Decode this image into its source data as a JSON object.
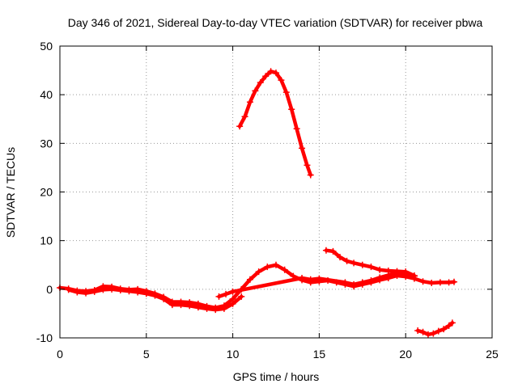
{
  "chart_data": {
    "type": "scatter",
    "title": "Day 346 of 2021, Sidereal Day-to-day VTEC variation (SDTVAR) for receiver pbwa",
    "xlabel": "GPS time / hours",
    "ylabel": "SDTVAR / TECUs",
    "xlim": [
      0,
      25
    ],
    "ylim": [
      -10,
      50
    ],
    "xticks": [
      0,
      5,
      10,
      15,
      20,
      25
    ],
    "yticks": [
      -10,
      0,
      10,
      20,
      30,
      40,
      50
    ],
    "grid": true,
    "marker_color": "#ff0000",
    "series": [
      {
        "name": "main-track",
        "points": [
          [
            0,
            0.3
          ],
          [
            0.5,
            0.1
          ],
          [
            1,
            -0.3
          ],
          [
            1.5,
            -0.4
          ],
          [
            2,
            -0.2
          ],
          [
            2.5,
            0.6
          ],
          [
            3,
            0.5
          ],
          [
            3.5,
            0.1
          ],
          [
            4,
            -0.1
          ],
          [
            4.5,
            0.0
          ],
          [
            5,
            -0.4
          ],
          [
            5.5,
            -0.9
          ],
          [
            6,
            -1.6
          ],
          [
            6.5,
            -2.6
          ],
          [
            7,
            -2.6
          ],
          [
            7.5,
            -2.7
          ],
          [
            8,
            -3.0
          ],
          [
            8.5,
            -3.5
          ],
          [
            9,
            -3.8
          ],
          [
            9.5,
            -3.4
          ],
          [
            10,
            -2.0
          ],
          [
            10.5,
            0.0
          ],
          [
            11,
            2.0
          ],
          [
            11.5,
            3.6
          ],
          [
            12,
            4.6
          ],
          [
            12.5,
            5.0
          ],
          [
            13,
            4.0
          ],
          [
            13.5,
            2.7
          ],
          [
            14,
            1.9
          ],
          [
            14.5,
            1.4
          ],
          [
            15,
            1.6
          ],
          [
            15.5,
            1.8
          ],
          [
            16,
            1.4
          ],
          [
            16.5,
            1.0
          ],
          [
            17,
            0.6
          ],
          [
            17.5,
            1.0
          ],
          [
            18,
            1.4
          ],
          [
            18.5,
            1.9
          ],
          [
            19,
            2.3
          ],
          [
            19.5,
            2.8
          ],
          [
            20,
            2.6
          ],
          [
            20.5,
            2.2
          ],
          [
            21,
            1.6
          ],
          [
            21.5,
            1.3
          ],
          [
            22,
            1.4
          ],
          [
            22.5,
            1.4
          ],
          [
            22.8,
            1.5
          ]
        ]
      },
      {
        "name": "lower-band",
        "points": [
          [
            0.5,
            -0.1
          ],
          [
            1,
            -0.6
          ],
          [
            1.5,
            -0.8
          ],
          [
            2,
            -0.5
          ],
          [
            2.5,
            -0.1
          ],
          [
            3,
            0.0
          ],
          [
            3.5,
            -0.2
          ],
          [
            4,
            -0.4
          ],
          [
            4.5,
            -0.6
          ],
          [
            5,
            -0.9
          ],
          [
            5.5,
            -1.3
          ],
          [
            6,
            -2.0
          ],
          [
            6.5,
            -3.2
          ],
          [
            7,
            -3.2
          ],
          [
            7.5,
            -3.4
          ],
          [
            8,
            -3.7
          ],
          [
            8.5,
            -4.0
          ],
          [
            9,
            -4.2
          ],
          [
            9.5,
            -4.0
          ],
          [
            10,
            -3.0
          ],
          [
            10.5,
            -1.5
          ]
        ]
      },
      {
        "name": "upper-band",
        "points": [
          [
            9.2,
            -1.5
          ],
          [
            9.6,
            -1.0
          ],
          [
            10,
            -0.5
          ],
          [
            14,
            2.3
          ],
          [
            14.5,
            2.0
          ],
          [
            15,
            2.2
          ],
          [
            16.5,
            1.4
          ],
          [
            17,
            1.0
          ],
          [
            17.5,
            1.4
          ],
          [
            18,
            1.8
          ],
          [
            18.5,
            2.4
          ],
          [
            19,
            2.9
          ],
          [
            19.5,
            3.4
          ],
          [
            20,
            3.3
          ],
          [
            20.5,
            2.7
          ]
        ]
      },
      {
        "name": "peak-arc",
        "points": [
          [
            10.4,
            33.5
          ],
          [
            10.7,
            35.5
          ],
          [
            11,
            38.5
          ],
          [
            11.3,
            40.8
          ],
          [
            11.6,
            42.5
          ],
          [
            11.9,
            43.8
          ],
          [
            12.2,
            44.8
          ],
          [
            12.5,
            44.5
          ],
          [
            12.8,
            43.0
          ],
          [
            13.1,
            40.5
          ],
          [
            13.4,
            37.0
          ],
          [
            13.7,
            33.0
          ],
          [
            14.0,
            29.0
          ],
          [
            14.3,
            25.5
          ],
          [
            14.5,
            23.5
          ]
        ]
      },
      {
        "name": "upper-right-segment",
        "points": [
          [
            15.4,
            8.0
          ],
          [
            15.8,
            7.8
          ],
          [
            16.2,
            6.6
          ],
          [
            16.6,
            5.8
          ],
          [
            17,
            5.4
          ],
          [
            17.5,
            5.0
          ],
          [
            18,
            4.6
          ],
          [
            18.5,
            4.0
          ],
          [
            19,
            3.8
          ],
          [
            19.5,
            3.7
          ],
          [
            20,
            3.6
          ],
          [
            20.5,
            2.8
          ]
        ]
      },
      {
        "name": "lower-right-segment",
        "points": [
          [
            20.7,
            -8.5
          ],
          [
            21,
            -8.8
          ],
          [
            21.3,
            -9.3
          ],
          [
            21.6,
            -9.1
          ],
          [
            21.9,
            -8.6
          ],
          [
            22.2,
            -8.2
          ],
          [
            22.5,
            -7.5
          ],
          [
            22.7,
            -6.9
          ]
        ]
      }
    ]
  }
}
